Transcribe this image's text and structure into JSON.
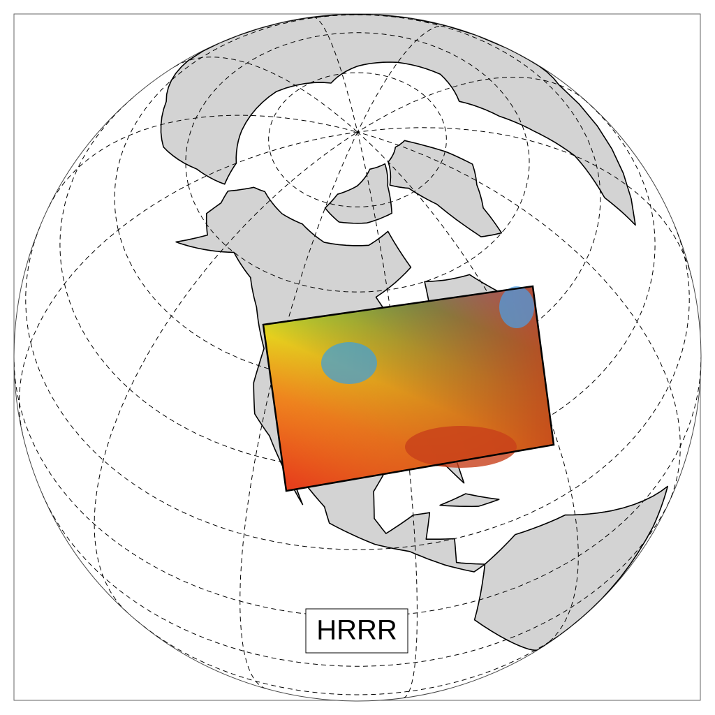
{
  "label": "HRRR"
}
